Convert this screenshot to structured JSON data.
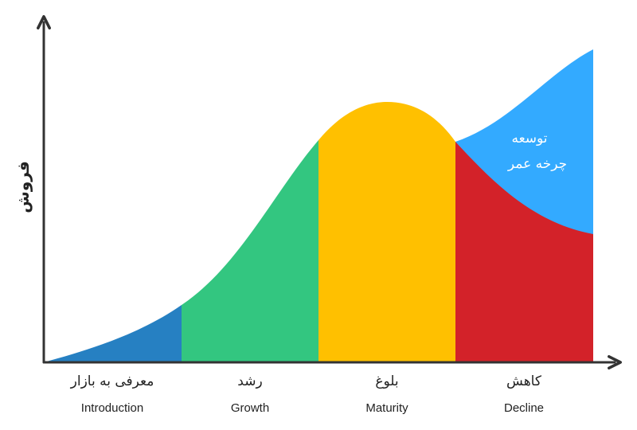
{
  "y_axis_label": "فروش",
  "stages": [
    {
      "label_fa": "معرفی به بازار",
      "label_en": "Introduction",
      "color": "#2680C2"
    },
    {
      "label_fa": "رشد",
      "label_en": "Growth",
      "color": "#33C680"
    },
    {
      "label_fa": "بلوغ",
      "label_en": "Maturity",
      "color": "#FFC000"
    },
    {
      "label_fa": "کاهش",
      "label_en": "Decline",
      "color": "#D32229"
    }
  ],
  "extension": {
    "line1": "توسعه",
    "line2": "چرخه عمر",
    "color": "#33AAFF"
  },
  "axis_color": "#333333"
}
